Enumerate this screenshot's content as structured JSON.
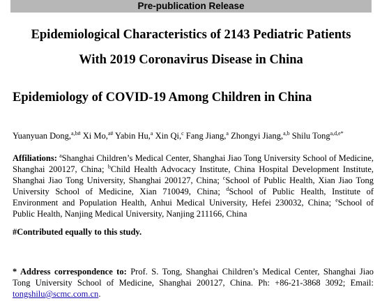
{
  "banner": "Pre-publication Release",
  "title_line1": "Epidemiological Characteristics of 2143 Pediatric Patients",
  "title_line2": "With 2019 Coronavirus Disease in China",
  "running_title": "Epidemiology of COVID-19 Among Children in China",
  "authors": [
    {
      "name": "Yuanyuan Dong,",
      "sup": "a,b#"
    },
    {
      "name": " Xi Mo,",
      "sup": "a#"
    },
    {
      "name": " Yabin Hu,",
      "sup": "a"
    },
    {
      "name": " Xin Qi,",
      "sup": "c"
    },
    {
      "name": " Fang Jiang,",
      "sup": "a"
    },
    {
      "name": " Zhongyi Jiang,",
      "sup": "a,b"
    },
    {
      "name": " Shilu Tong",
      "sup": "a,d,e*"
    }
  ],
  "affiliations": {
    "label": "Affiliations:",
    "items": [
      {
        "sup": "a",
        "text": "Shanghai Children’s Medical Center, Shanghai Jiao Tong University School of Medicine, Shanghai 200127, China; "
      },
      {
        "sup": "b",
        "text": "Child Health Advocacy Institute, China Hospital Development Institute, Shanghai Jiao Tong University, Shanghai 200127, China; "
      },
      {
        "sup": "c",
        "text": "School of Public Health, Xian Jiao Tong University School of Medicine, Xian 710049, China; "
      },
      {
        "sup": "d",
        "text": "School of Public Health, Institute of Environment and Population Health, Anhui Medical University, Hefei 230032, China; "
      },
      {
        "sup": "e",
        "text": "School of Public Health, Nanjing Medical University, Nanjing 211166, China"
      }
    ]
  },
  "contributed": "#Contributed equally to this study.",
  "correspondence": {
    "label": "* Address correspondence to:",
    "text": " Prof. S. Tong, Shanghai Children’s Medical Center, Shanghai Jiao Tong University School of Medicine, Shanghai 200127, China. Ph: +86-21-3868 3092; Email: ",
    "email": "tongshilu@scmc.com.cn",
    "end": "."
  }
}
